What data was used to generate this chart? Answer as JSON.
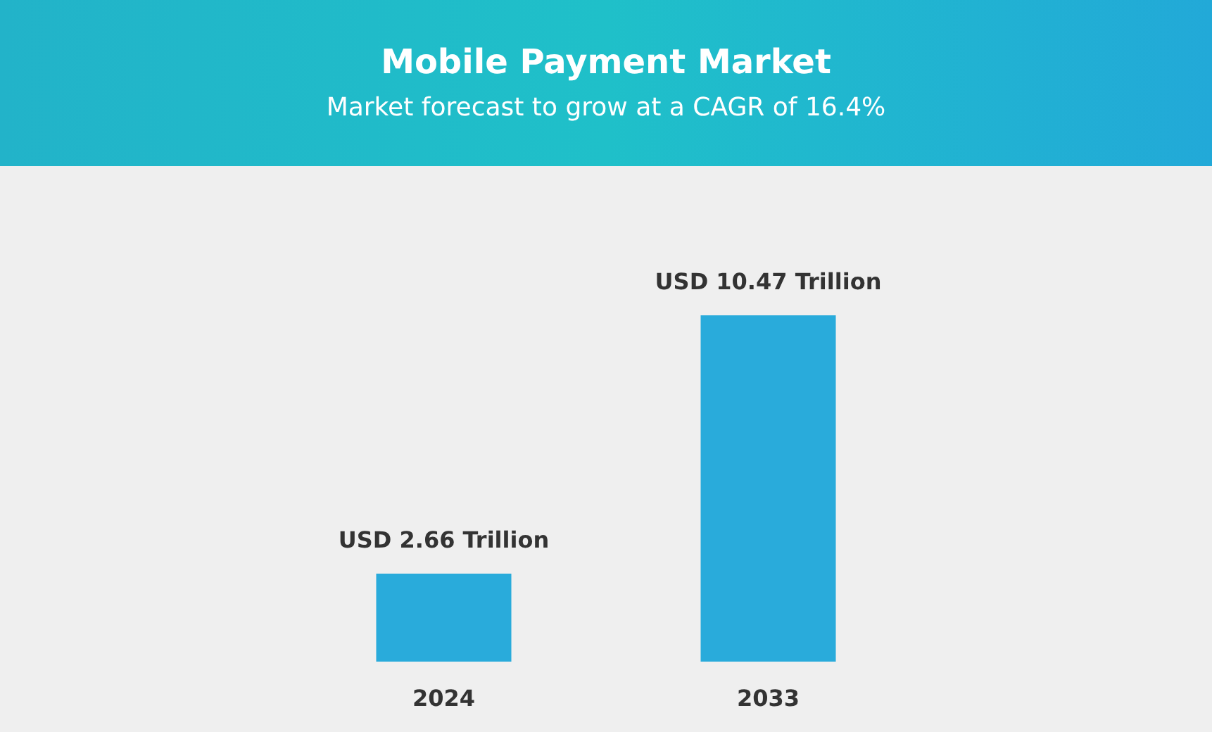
{
  "chart_data": {
    "type": "bar",
    "title": "Mobile Payment Market",
    "subtitle": "Market forecast to grow at a CAGR of 16.4%",
    "categories": [
      "2024",
      "2033"
    ],
    "values": [
      2.66,
      10.47
    ],
    "value_labels": [
      "USD 2.66 Trillion",
      "USD 10.47 Trillion"
    ],
    "color": "#29abdb"
  }
}
